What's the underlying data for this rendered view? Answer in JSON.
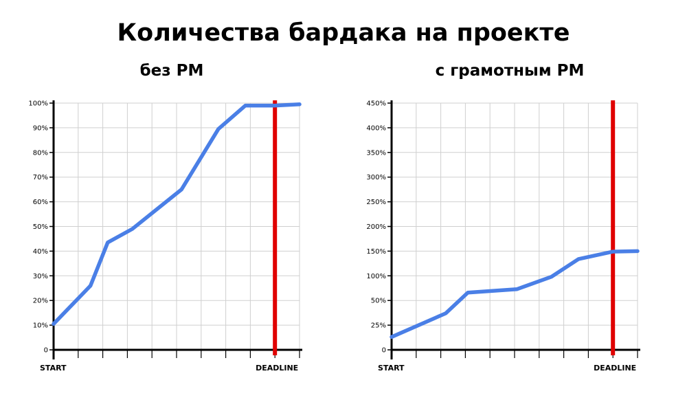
{
  "title": "Количества бардака на проекте",
  "chart_data": [
    {
      "type": "line",
      "title": "без PM",
      "x_tick_labels": [
        "START",
        "DEADLINE"
      ],
      "y_ticks": [
        0,
        10,
        20,
        30,
        40,
        50,
        60,
        70,
        80,
        90,
        100
      ],
      "y_tick_labels": [
        "0",
        "10%",
        "20%",
        "30%",
        "40%",
        "50%",
        "60%",
        "70%",
        "80%",
        "90%",
        "100%"
      ],
      "ylim": [
        0,
        100
      ],
      "xlim": [
        0,
        10
      ],
      "grid": true,
      "deadline_x": 9,
      "deadline_color": "#e00000",
      "series": [
        {
          "color": "#4a7fe6",
          "x": [
            0,
            1.5,
            2.2,
            3.2,
            5.2,
            6.7,
            7.8,
            9,
            10
          ],
          "y": [
            10.5,
            26,
            43.5,
            49,
            65,
            89.5,
            99,
            99,
            99.5
          ]
        }
      ]
    },
    {
      "type": "line",
      "title": "с грамотным PM",
      "x_tick_labels": [
        "START",
        "DEADLINE"
      ],
      "y_ticks": [
        0,
        25,
        50,
        100,
        150,
        200,
        250,
        300,
        350,
        400,
        450
      ],
      "y_tick_labels": [
        "0",
        "25%",
        "50%",
        "100%",
        "150%",
        "200%",
        "250%",
        "300%",
        "350%",
        "400%",
        "450%"
      ],
      "ylim": [
        0,
        450
      ],
      "xlim": [
        0,
        10
      ],
      "grid": true,
      "deadline_x": 9,
      "deadline_color": "#e00000",
      "series": [
        {
          "color": "#4a7fe6",
          "x": [
            0,
            2.2,
            3.1,
            5.1,
            6.5,
            7.6,
            9,
            10
          ],
          "y": [
            13,
            37,
            66,
            73,
            98,
            134,
            149,
            150
          ]
        }
      ]
    }
  ]
}
